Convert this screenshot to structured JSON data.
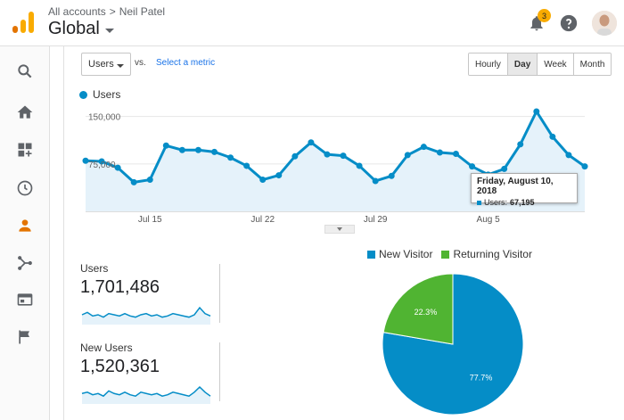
{
  "header": {
    "breadcrumb_root": "All accounts",
    "breadcrumb_sep": ">",
    "breadcrumb_account": "Neil Patel",
    "view_name": "Global",
    "notification_count": "3"
  },
  "toolbar": {
    "metric": "Users",
    "vs": "vs.",
    "select_metric": "Select a metric",
    "granularity": [
      "Hourly",
      "Day",
      "Week",
      "Month"
    ],
    "active_granularity": "Day"
  },
  "chart_data": {
    "type": "line",
    "series": [
      {
        "name": "Users",
        "values": [
          80000,
          79000,
          69000,
          46000,
          50000,
          104000,
          97000,
          97000,
          94000,
          85000,
          72000,
          50000,
          57000,
          87000,
          109000,
          90000,
          88000,
          72000,
          48000,
          56000,
          89000,
          102000,
          93000,
          91000,
          71000,
          58000,
          67195,
          106000,
          158000,
          118000,
          89000,
          71000
        ]
      }
    ],
    "x_tick_labels": [
      "Jul 15",
      "Jul 22",
      "Jul 29",
      "Aug 5"
    ],
    "y_tick_labels": [
      "150,000",
      "75,000"
    ],
    "ylim": [
      0,
      165000
    ],
    "grid": true,
    "color": "#058dc7",
    "tooltip": {
      "date": "Friday, August 10, 2018",
      "label": "Users:",
      "value": "67,195"
    }
  },
  "stats": [
    {
      "label": "Users",
      "value": "1,701,486",
      "spark": [
        6,
        8,
        5,
        6,
        4,
        7,
        6,
        5,
        7,
        5,
        4,
        6,
        7,
        5,
        6,
        4,
        5,
        7,
        6,
        5,
        4,
        6,
        12,
        7,
        5
      ]
    },
    {
      "label": "New Users",
      "value": "1,520,361",
      "spark": [
        6,
        7,
        5,
        6,
        4,
        8,
        6,
        5,
        7,
        5,
        4,
        7,
        6,
        5,
        6,
        4,
        5,
        7,
        6,
        5,
        4,
        7,
        11,
        7,
        4
      ]
    }
  ],
  "pie": {
    "legend": [
      {
        "name": "New Visitor",
        "color": "#058dc7"
      },
      {
        "name": "Returning Visitor",
        "color": "#50b432"
      }
    ],
    "slices": [
      {
        "name": "New Visitor",
        "value": 77.7,
        "label": "77.7%"
      },
      {
        "name": "Returning Visitor",
        "value": 22.3,
        "label": "22.3%"
      }
    ]
  }
}
